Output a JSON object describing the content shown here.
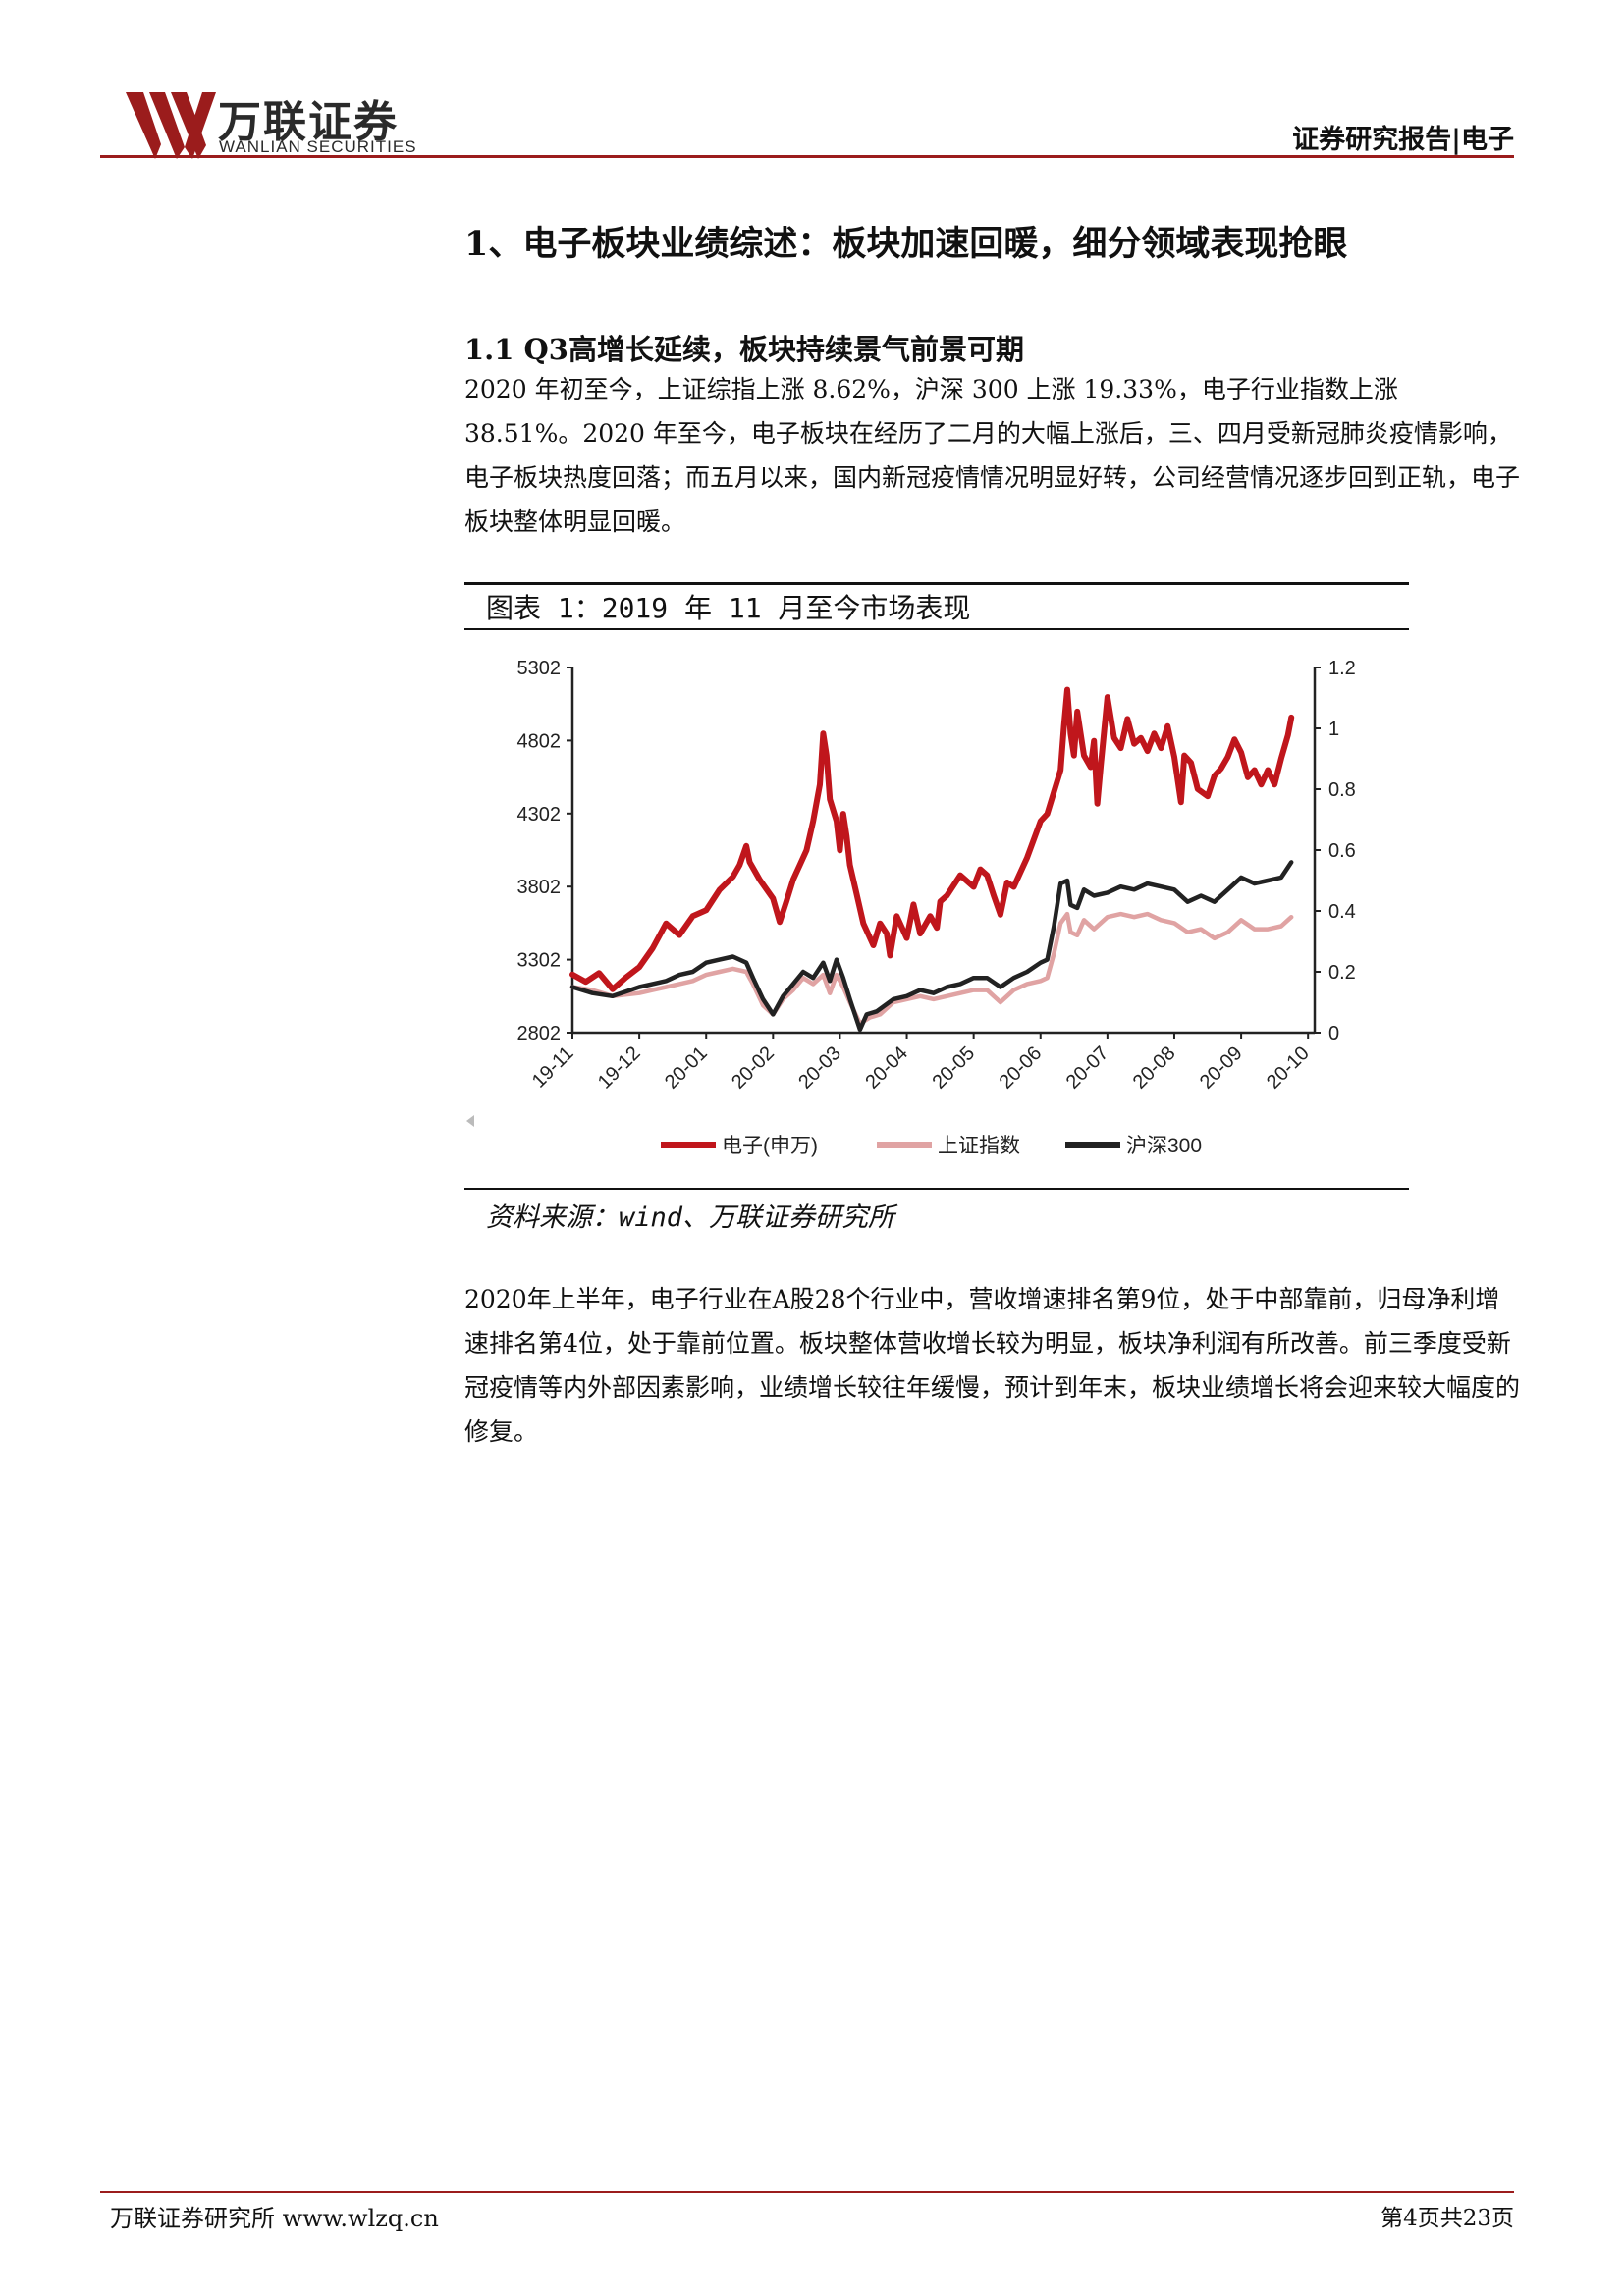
{
  "header": {
    "brand_cn": "万联证券",
    "brand_en": "WANLIAN SECURITIES",
    "report_type": "证券研究报告|电子",
    "brand_color": "#9b1c1c"
  },
  "section": {
    "h1": "1、电子板块业绩综述：板块加速回暖，细分领域表现抢眼",
    "h2": "1.1 Q3高增长延续，板块持续景气前景可期",
    "p1": "2020 年初至今，上证综指上涨 8.62%，沪深 300 上涨 19.33%，电子行业指数上涨 38.51%。2020 年至今，电子板块在经历了二月的大幅上涨后，三、四月受新冠肺炎疫情影响，电子板块热度回落；而五月以来，国内新冠疫情情况明显好转，公司经营情况逐步回到正轨，电子板块整体明显回暖。",
    "p2": "2020年上半年，电子行业在A股28个行业中，营收增速排名第9位，处于中部靠前，归母净利增速排名第4位，处于靠前位置。板块整体营收增长较为明显，板块净利润有所改善。前三季度受新冠疫情等内外部因素影响，业绩增长较往年缓慢，预计到年末，板块业绩增长将会迎来较大幅度的修复。"
  },
  "figure": {
    "title": "图表 1：2019 年 11 月至今市场表现",
    "source": "资料来源：wind、万联证券研究所"
  },
  "chart_data": {
    "type": "line",
    "x": [
      "19-11",
      "19-12",
      "20-01",
      "20-02",
      "20-03",
      "20-04",
      "20-05",
      "20-06",
      "20-07",
      "20-08",
      "20-09",
      "20-10"
    ],
    "y_left": {
      "ticks": [
        2802,
        3302,
        3802,
        4302,
        4802,
        5302
      ],
      "range": [
        2802,
        5302
      ]
    },
    "y_right": {
      "ticks": [
        0,
        0.2,
        0.4,
        0.6,
        0.8,
        1,
        1.2
      ],
      "range": [
        0,
        1.2
      ]
    },
    "series": [
      {
        "name": "电子(申万)",
        "axis": "left",
        "color": "#c0161c",
        "points": [
          [
            0,
            3200
          ],
          [
            0.2,
            3150
          ],
          [
            0.4,
            3210
          ],
          [
            0.6,
            3100
          ],
          [
            0.8,
            3180
          ],
          [
            1,
            3250
          ],
          [
            1.2,
            3380
          ],
          [
            1.4,
            3550
          ],
          [
            1.6,
            3470
          ],
          [
            1.8,
            3600
          ],
          [
            2,
            3640
          ],
          [
            2.2,
            3780
          ],
          [
            2.4,
            3870
          ],
          [
            2.5,
            3950
          ],
          [
            2.6,
            4080
          ],
          [
            2.65,
            3970
          ],
          [
            2.8,
            3850
          ],
          [
            3,
            3720
          ],
          [
            3.1,
            3560
          ],
          [
            3.2,
            3700
          ],
          [
            3.3,
            3850
          ],
          [
            3.4,
            3950
          ],
          [
            3.5,
            4050
          ],
          [
            3.6,
            4250
          ],
          [
            3.7,
            4500
          ],
          [
            3.75,
            4850
          ],
          [
            3.8,
            4700
          ],
          [
            3.85,
            4400
          ],
          [
            3.95,
            4250
          ],
          [
            4,
            4050
          ],
          [
            4.05,
            4300
          ],
          [
            4.1,
            4150
          ],
          [
            4.15,
            3950
          ],
          [
            4.25,
            3750
          ],
          [
            4.35,
            3550
          ],
          [
            4.5,
            3400
          ],
          [
            4.6,
            3550
          ],
          [
            4.7,
            3480
          ],
          [
            4.75,
            3330
          ],
          [
            4.85,
            3600
          ],
          [
            5,
            3450
          ],
          [
            5.1,
            3680
          ],
          [
            5.2,
            3480
          ],
          [
            5.35,
            3600
          ],
          [
            5.45,
            3520
          ],
          [
            5.5,
            3700
          ],
          [
            5.6,
            3740
          ],
          [
            5.8,
            3880
          ],
          [
            6,
            3800
          ],
          [
            6.1,
            3920
          ],
          [
            6.2,
            3880
          ],
          [
            6.3,
            3740
          ],
          [
            6.4,
            3610
          ],
          [
            6.5,
            3830
          ],
          [
            6.6,
            3800
          ],
          [
            6.8,
            4000
          ],
          [
            7,
            4250
          ],
          [
            7.1,
            4300
          ],
          [
            7.2,
            4450
          ],
          [
            7.3,
            4600
          ],
          [
            7.35,
            4900
          ],
          [
            7.4,
            5150
          ],
          [
            7.45,
            4850
          ],
          [
            7.5,
            4700
          ],
          [
            7.55,
            5000
          ],
          [
            7.65,
            4700
          ],
          [
            7.75,
            4620
          ],
          [
            7.8,
            4800
          ],
          [
            7.85,
            4370
          ],
          [
            7.9,
            4630
          ],
          [
            8,
            5100
          ],
          [
            8.1,
            4820
          ],
          [
            8.2,
            4750
          ],
          [
            8.3,
            4950
          ],
          [
            8.4,
            4780
          ],
          [
            8.5,
            4820
          ],
          [
            8.6,
            4730
          ],
          [
            8.7,
            4850
          ],
          [
            8.8,
            4750
          ],
          [
            8.9,
            4900
          ],
          [
            9,
            4690
          ],
          [
            9.1,
            4380
          ],
          [
            9.15,
            4700
          ],
          [
            9.25,
            4650
          ],
          [
            9.35,
            4470
          ],
          [
            9.5,
            4420
          ],
          [
            9.6,
            4560
          ],
          [
            9.7,
            4610
          ],
          [
            9.8,
            4690
          ],
          [
            9.9,
            4810
          ],
          [
            10,
            4720
          ],
          [
            10.1,
            4550
          ],
          [
            10.2,
            4600
          ],
          [
            10.3,
            4500
          ],
          [
            10.4,
            4600
          ],
          [
            10.5,
            4500
          ],
          [
            10.6,
            4680
          ],
          [
            10.7,
            4840
          ],
          [
            10.75,
            4960
          ]
        ]
      },
      {
        "name": "上证指数",
        "axis": "right",
        "color": "#e0a3a3",
        "points": [
          [
            0,
            0.15
          ],
          [
            0.3,
            0.14
          ],
          [
            0.6,
            0.12
          ],
          [
            1,
            0.13
          ],
          [
            1.2,
            0.14
          ],
          [
            1.4,
            0.15
          ],
          [
            1.6,
            0.16
          ],
          [
            1.8,
            0.17
          ],
          [
            2,
            0.19
          ],
          [
            2.2,
            0.2
          ],
          [
            2.4,
            0.21
          ],
          [
            2.6,
            0.2
          ],
          [
            2.7,
            0.16
          ],
          [
            2.85,
            0.09
          ],
          [
            3,
            0.06
          ],
          [
            3.15,
            0.11
          ],
          [
            3.3,
            0.14
          ],
          [
            3.45,
            0.18
          ],
          [
            3.6,
            0.16
          ],
          [
            3.75,
            0.19
          ],
          [
            3.85,
            0.13
          ],
          [
            3.95,
            0.19
          ],
          [
            4.05,
            0.15
          ],
          [
            4.15,
            0.1
          ],
          [
            4.3,
            0.03
          ],
          [
            4.45,
            0.05
          ],
          [
            4.6,
            0.06
          ],
          [
            4.8,
            0.1
          ],
          [
            5,
            0.11
          ],
          [
            5.2,
            0.12
          ],
          [
            5.4,
            0.11
          ],
          [
            5.6,
            0.12
          ],
          [
            5.8,
            0.13
          ],
          [
            6,
            0.14
          ],
          [
            6.2,
            0.14
          ],
          [
            6.4,
            0.1
          ],
          [
            6.6,
            0.14
          ],
          [
            6.8,
            0.16
          ],
          [
            7,
            0.17
          ],
          [
            7.1,
            0.18
          ],
          [
            7.2,
            0.26
          ],
          [
            7.3,
            0.36
          ],
          [
            7.4,
            0.39
          ],
          [
            7.45,
            0.33
          ],
          [
            7.55,
            0.32
          ],
          [
            7.65,
            0.37
          ],
          [
            7.8,
            0.34
          ],
          [
            8,
            0.38
          ],
          [
            8.2,
            0.39
          ],
          [
            8.4,
            0.38
          ],
          [
            8.6,
            0.39
          ],
          [
            8.8,
            0.37
          ],
          [
            9,
            0.36
          ],
          [
            9.2,
            0.33
          ],
          [
            9.4,
            0.34
          ],
          [
            9.6,
            0.31
          ],
          [
            9.8,
            0.33
          ],
          [
            10,
            0.37
          ],
          [
            10.2,
            0.34
          ],
          [
            10.4,
            0.34
          ],
          [
            10.6,
            0.35
          ],
          [
            10.75,
            0.38
          ]
        ]
      },
      {
        "name": "沪深300",
        "axis": "right",
        "color": "#222222",
        "points": [
          [
            0,
            0.15
          ],
          [
            0.3,
            0.13
          ],
          [
            0.6,
            0.12
          ],
          [
            1,
            0.15
          ],
          [
            1.2,
            0.16
          ],
          [
            1.4,
            0.17
          ],
          [
            1.6,
            0.19
          ],
          [
            1.8,
            0.2
          ],
          [
            2,
            0.23
          ],
          [
            2.2,
            0.24
          ],
          [
            2.4,
            0.25
          ],
          [
            2.6,
            0.23
          ],
          [
            2.7,
            0.18
          ],
          [
            2.85,
            0.11
          ],
          [
            3,
            0.06
          ],
          [
            3.15,
            0.12
          ],
          [
            3.3,
            0.16
          ],
          [
            3.45,
            0.2
          ],
          [
            3.6,
            0.18
          ],
          [
            3.75,
            0.23
          ],
          [
            3.85,
            0.17
          ],
          [
            3.95,
            0.24
          ],
          [
            4.05,
            0.18
          ],
          [
            4.15,
            0.11
          ],
          [
            4.3,
            0.01
          ],
          [
            4.4,
            0.06
          ],
          [
            4.55,
            0.07
          ],
          [
            4.8,
            0.11
          ],
          [
            5,
            0.12
          ],
          [
            5.2,
            0.14
          ],
          [
            5.4,
            0.13
          ],
          [
            5.6,
            0.15
          ],
          [
            5.8,
            0.16
          ],
          [
            6,
            0.18
          ],
          [
            6.2,
            0.18
          ],
          [
            6.4,
            0.15
          ],
          [
            6.6,
            0.18
          ],
          [
            6.8,
            0.2
          ],
          [
            7,
            0.23
          ],
          [
            7.1,
            0.24
          ],
          [
            7.2,
            0.35
          ],
          [
            7.3,
            0.49
          ],
          [
            7.4,
            0.5
          ],
          [
            7.45,
            0.42
          ],
          [
            7.55,
            0.41
          ],
          [
            7.65,
            0.47
          ],
          [
            7.8,
            0.45
          ],
          [
            8,
            0.46
          ],
          [
            8.2,
            0.48
          ],
          [
            8.4,
            0.47
          ],
          [
            8.6,
            0.49
          ],
          [
            8.8,
            0.48
          ],
          [
            9,
            0.47
          ],
          [
            9.2,
            0.43
          ],
          [
            9.4,
            0.45
          ],
          [
            9.6,
            0.43
          ],
          [
            9.8,
            0.47
          ],
          [
            10,
            0.51
          ],
          [
            10.2,
            0.49
          ],
          [
            10.4,
            0.5
          ],
          [
            10.6,
            0.51
          ],
          [
            10.75,
            0.56
          ]
        ]
      }
    ]
  },
  "footer": {
    "left": "万联证券研究所 www.wlzq.cn",
    "right": "第4页共23页"
  }
}
